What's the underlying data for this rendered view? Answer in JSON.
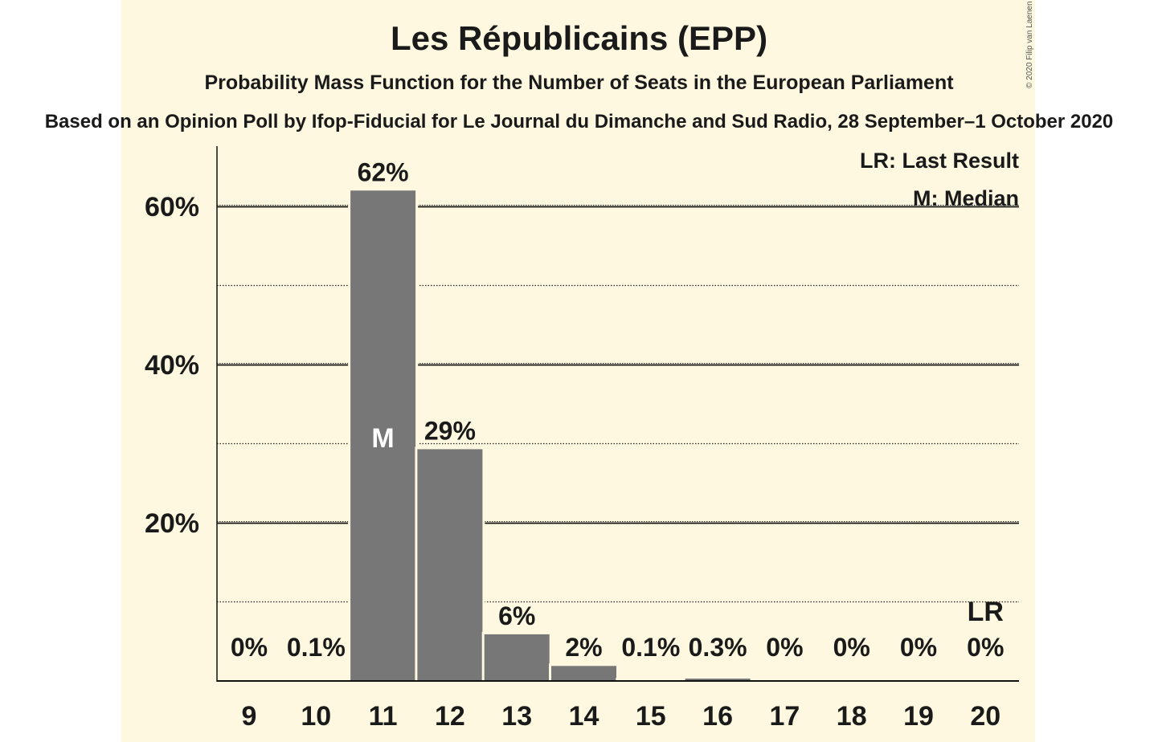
{
  "chart_data": {
    "type": "bar",
    "title": "Les Républicains (EPP)",
    "subtitle": "Probability Mass Function for the Number of Seats in the European Parliament",
    "subtitle2": "Based on an Opinion Poll by Ifop-Fiducial for Le Journal du Dimanche and Sud Radio, 28 September–1 October 2020",
    "categories": [
      "9",
      "10",
      "11",
      "12",
      "13",
      "14",
      "15",
      "16",
      "17",
      "18",
      "19",
      "20"
    ],
    "values": [
      0,
      0.1,
      62,
      29.3,
      5.9,
      1.9,
      0.1,
      0.3,
      0,
      0,
      0,
      0
    ],
    "value_labels": [
      "0%",
      "0.1%",
      "62%",
      "29%",
      "6%",
      "2%",
      "0.1%",
      "0.3%",
      "0%",
      "0%",
      "0%",
      "0%"
    ],
    "ylim": [
      0,
      67
    ],
    "yticks": [
      20,
      40,
      60
    ],
    "ytick_labels": [
      "20%",
      "40%",
      "60%"
    ],
    "minor_gridlines": [
      10,
      30,
      50
    ],
    "median_category": "11",
    "median_marker": "M",
    "last_result_category": "20",
    "last_result_marker": "LR",
    "legend": [
      "LR: Last Result",
      "M: Median"
    ],
    "legend_position": "top-right",
    "bar_color": "#777777",
    "background_color": "#fdf8df"
  },
  "copyright": "© 2020 Filip van Laenen"
}
